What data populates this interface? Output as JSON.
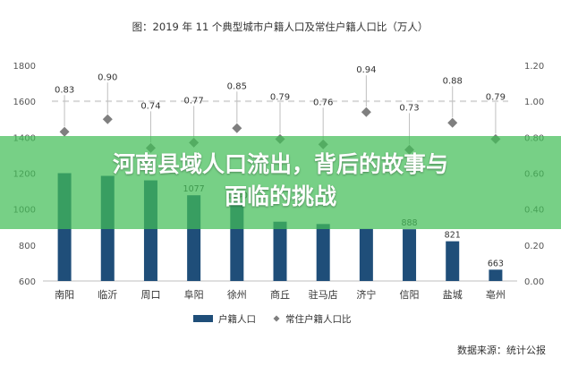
{
  "chart_data": {
    "type": "bar",
    "title": "图：2019 年 11 个典型城市户籍人口及常住户籍人口比（万人）",
    "categories": [
      "南阳",
      "临沂",
      "周口",
      "阜阳",
      "徐州",
      "商丘",
      "驻马店",
      "济宁",
      "信阳",
      "盐城",
      "亳州"
    ],
    "series": [
      {
        "name": "户籍人口",
        "type": "bar",
        "axis": "left",
        "values": [
          1200,
          1185,
          1160,
          1077,
          1040,
          930,
          917,
          890,
          888,
          821,
          663
        ],
        "labels": [
          "",
          "",
          "",
          "1077",
          "1040",
          "",
          "",
          "",
          "888",
          "821",
          "663"
        ]
      },
      {
        "name": "常住户籍人口比",
        "type": "scatter",
        "axis": "right",
        "values": [
          0.83,
          0.9,
          0.74,
          0.77,
          0.85,
          0.79,
          0.76,
          0.94,
          0.73,
          0.88,
          0.79
        ],
        "labels": [
          "0.83",
          "0.90",
          "0.74",
          "0.77",
          "0.85",
          "0.79",
          "0.76",
          "0.94",
          "0.73",
          "0.88",
          "0.79"
        ]
      }
    ],
    "y_left": {
      "range": [
        600,
        1800
      ],
      "ticks": [
        "600",
        "800",
        "1000",
        "1200",
        "1400",
        "1600",
        "1800"
      ]
    },
    "y_right": {
      "range": [
        0,
        1.2
      ],
      "ticks": [
        "0.00",
        "0.20",
        "0.40",
        "0.60",
        "0.80",
        "1.00",
        "1.20"
      ]
    },
    "reference_line": 1.0,
    "grid": false,
    "legend_position": "bottom",
    "source": "数据来源：统计公报",
    "colors": {
      "bar": "#1f4e79",
      "marker": "#7f7f7f",
      "leader": "#bfbfbf",
      "reference_line": "#d9d9d9",
      "banner": "#42be58"
    }
  },
  "banner": {
    "title_line1": "河南县域人口流出，背后的故事与",
    "title_line2": "面临的挑战"
  }
}
